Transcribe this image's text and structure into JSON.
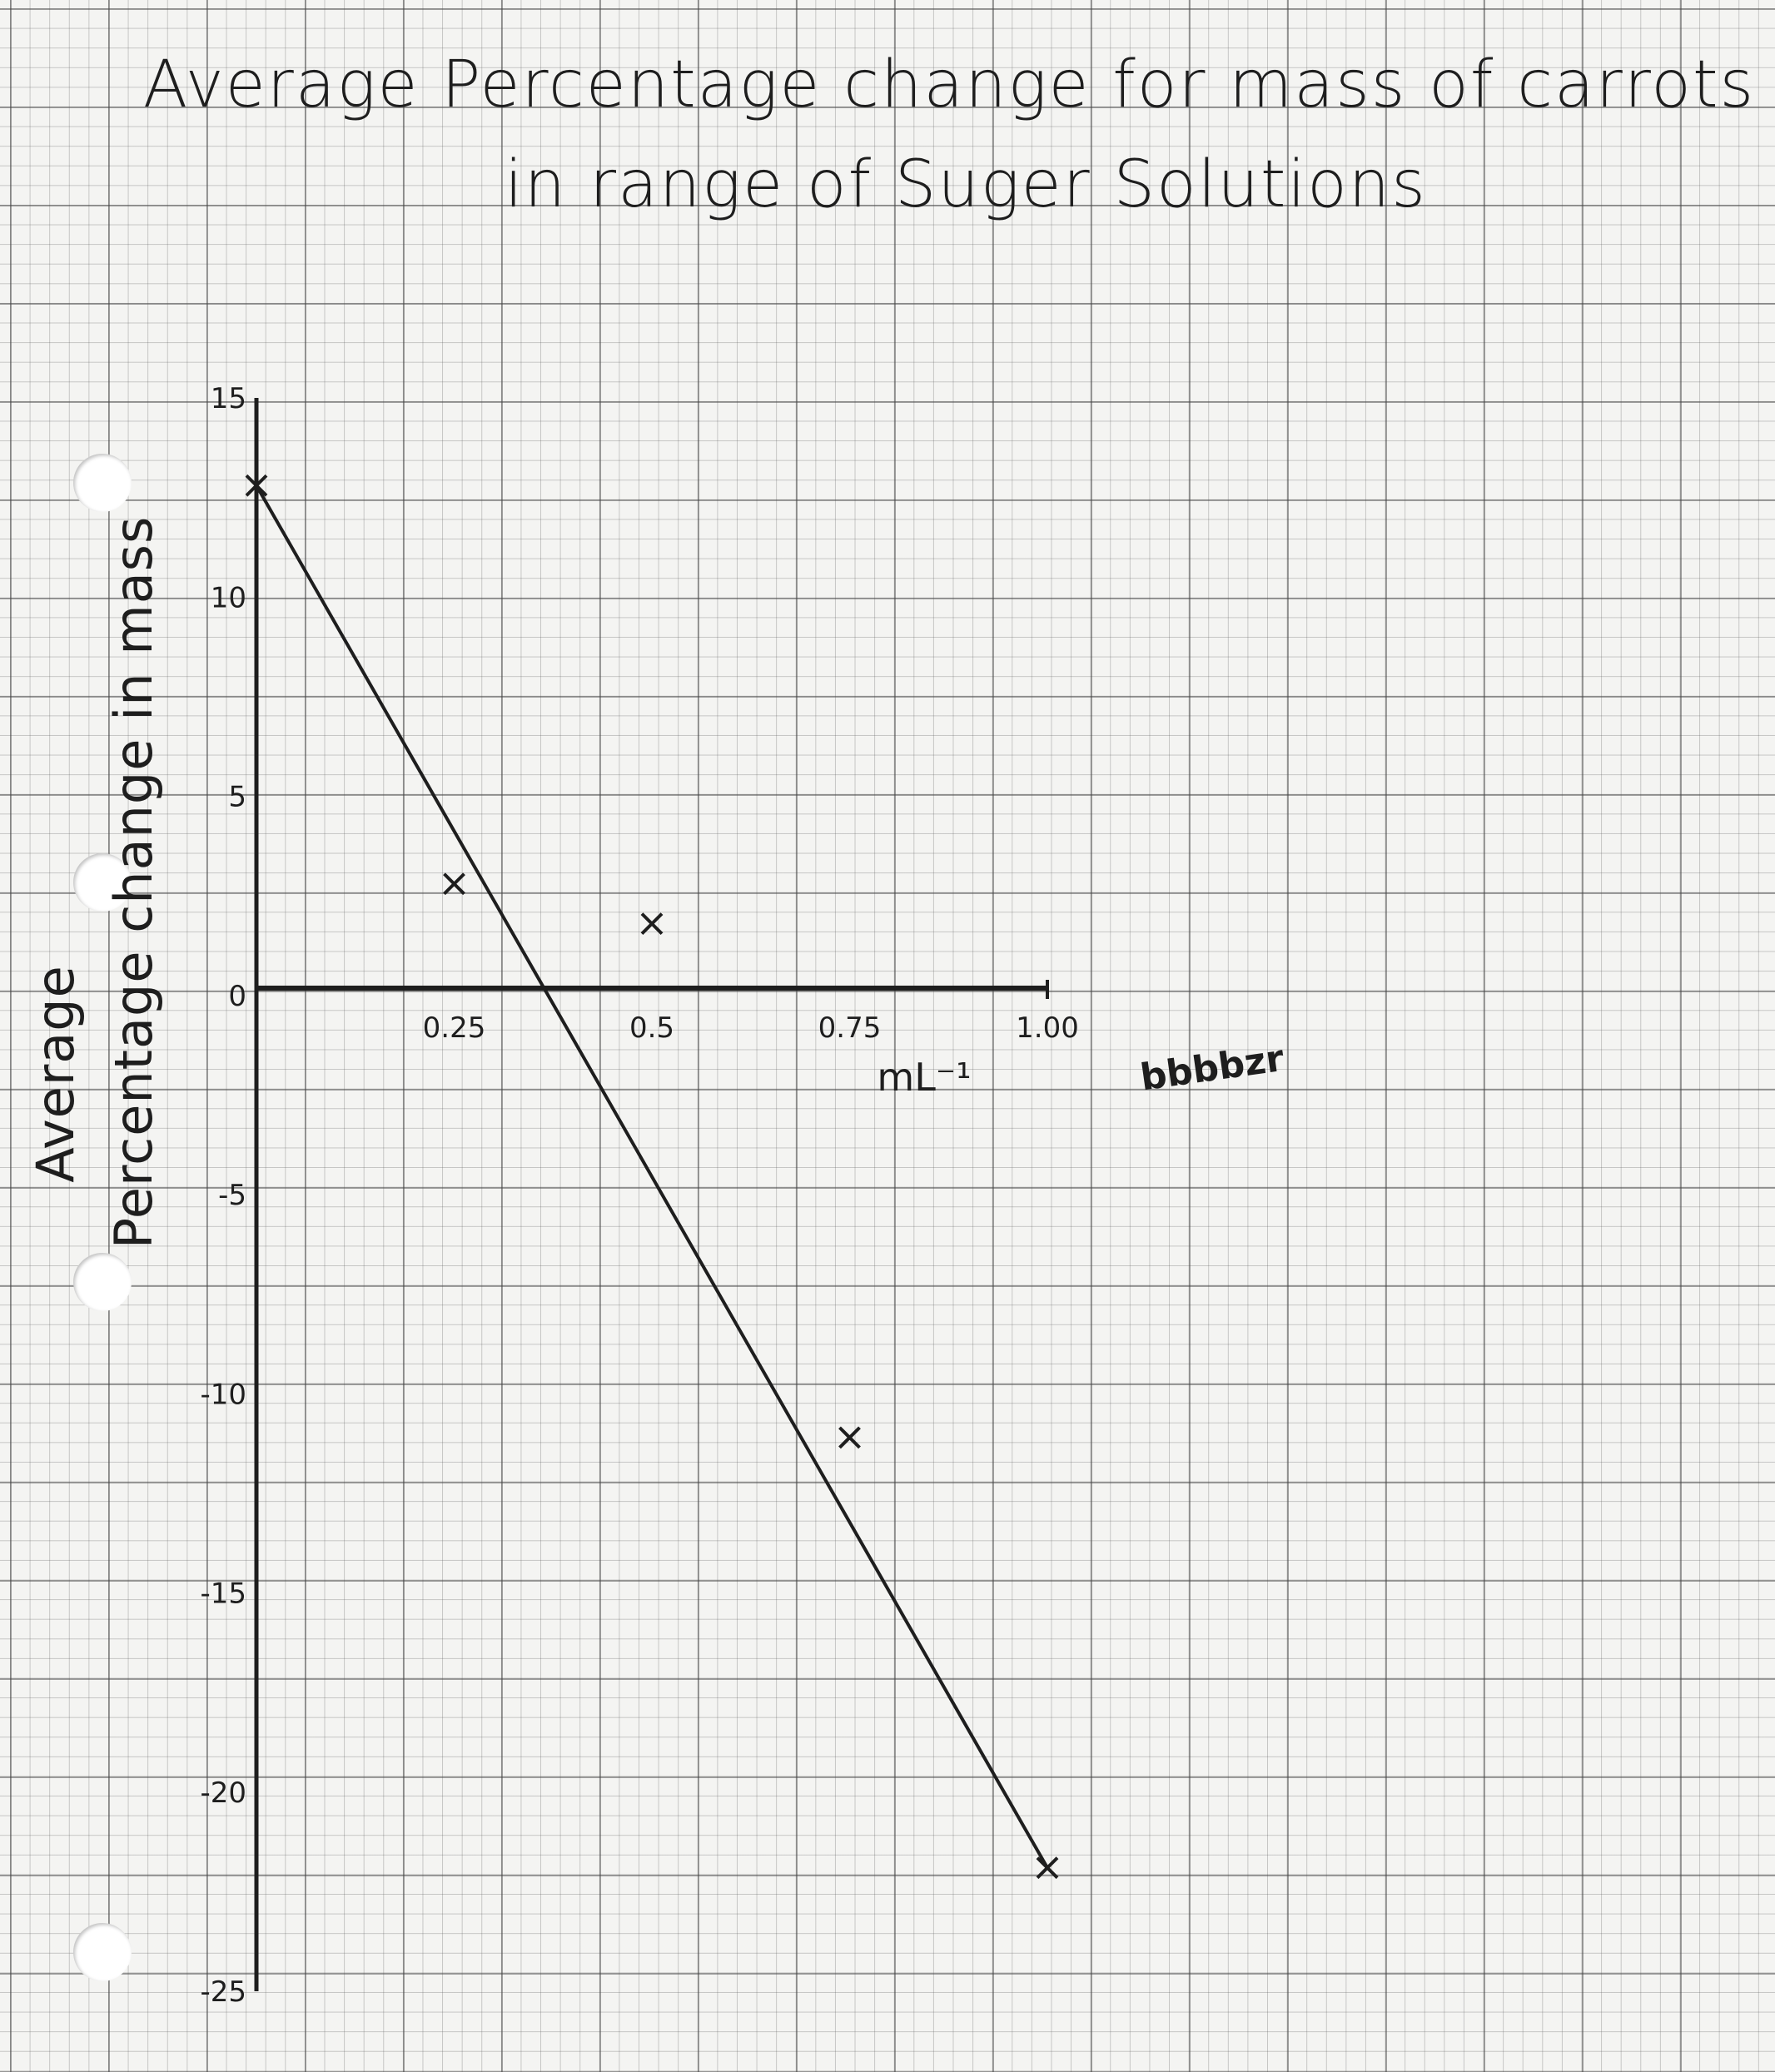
{
  "chart_data": {
    "type": "scatter",
    "title": "Average Percentage change for mass of carrots",
    "subtitle": "in range of Suger Solutions",
    "ylabel": [
      "Average",
      "Percentage change in mass"
    ],
    "xlabel": "mL⁻¹",
    "x_ticks": [
      "0.25",
      "0.5",
      "0.75",
      "1.00"
    ],
    "y_ticks": [
      "15",
      "10",
      "5",
      "0",
      "-5",
      "-10",
      "-15",
      "-20",
      "-25"
    ],
    "xlim": [
      0,
      1.0
    ],
    "ylim": [
      -25,
      15
    ],
    "points": [
      {
        "x": 0,
        "y": 12.8
      },
      {
        "x": 0.25,
        "y": 2.8
      },
      {
        "x": 0.5,
        "y": 1.8
      },
      {
        "x": 0.75,
        "y": -11.1
      },
      {
        "x": 1.0,
        "y": -21.9
      }
    ],
    "trendline": {
      "x1": 0,
      "y1": 12.8,
      "x2": 1.0,
      "y2": -21.9
    },
    "grid": true,
    "scribble": "bbbbzr",
    "color": "#1e1e1e"
  }
}
